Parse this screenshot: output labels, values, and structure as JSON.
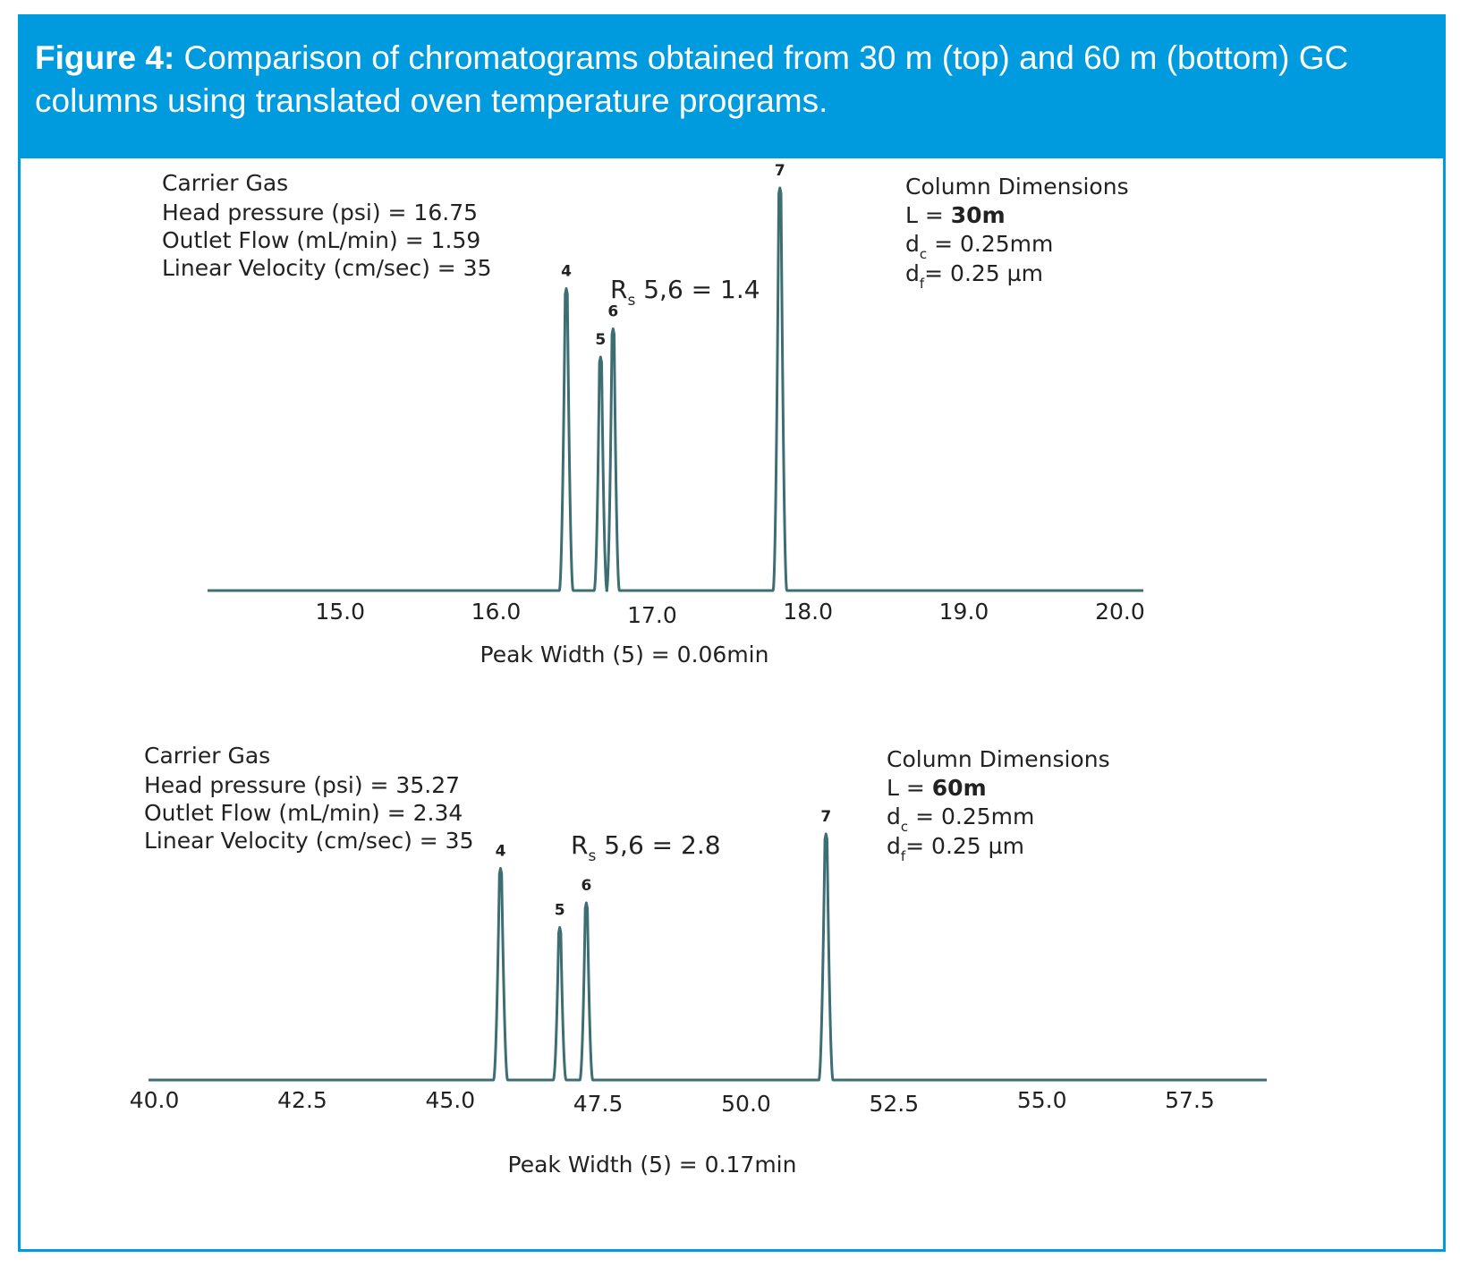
{
  "header": {
    "figure_label": "Figure 4:",
    "caption": "Comparison of chromatograms obtained from 30 m (top) and 60 m (bottom) GC columns using translated oven temperature programs.",
    "background": "#009bdf"
  },
  "colors": {
    "trace": "#3d6e73",
    "frame": "#009bdf"
  },
  "chart_data": [
    {
      "type": "line",
      "title": "",
      "xlabel": "Peak Width (5) = 0.06min",
      "ylabel": "",
      "xticks": [
        "15.0",
        "16.0",
        "17.0",
        "18.0",
        "19.0",
        "20.0"
      ],
      "xlim": [
        14.15,
        20.15
      ],
      "ylim": [
        0,
        100
      ],
      "grid": false,
      "resolution": {
        "label": "R",
        "sub": "s",
        "value": " 5,6 = 1.4"
      },
      "carrier_gas": {
        "title": "Carrier Gas",
        "lines": [
          "Head pressure (psi) = 16.75",
          "Outlet Flow (mL/min) = 1.59",
          "Linear Velocity (cm/sec) = 35"
        ]
      },
      "column": {
        "title": "Column Dimensions",
        "length_prefix": "L = ",
        "length_value": "30m",
        "dc_main": "d",
        "dc_sub": "c",
        "dc_value": " = 0.25mm",
        "df_main": "d",
        "df_sub": "f",
        "df_value": "= 0.25 µm"
      },
      "peaks": [
        {
          "label": "4",
          "x": 16.45,
          "height": 75,
          "halfwidth": 0.033
        },
        {
          "label": "5",
          "x": 16.67,
          "height": 58,
          "halfwidth": 0.03
        },
        {
          "label": "6",
          "x": 16.75,
          "height": 65,
          "halfwidth": 0.03
        },
        {
          "label": "7",
          "x": 17.82,
          "height": 100,
          "halfwidth": 0.033
        }
      ]
    },
    {
      "type": "line",
      "title": "",
      "xlabel": "Peak Width (5) = 0.17min",
      "ylabel": "",
      "xticks": [
        "40.0",
        "42.5",
        "45.0",
        "47.5",
        "50.0",
        "52.5",
        "55.0",
        "57.5"
      ],
      "xlim": [
        39.9,
        58.8
      ],
      "ylim": [
        0,
        100
      ],
      "grid": false,
      "resolution": {
        "label": "R",
        "sub": "s",
        "value": " 5,6 = 2.8"
      },
      "carrier_gas": {
        "title": "Carrier Gas",
        "lines": [
          "Head pressure (psi) = 35.27",
          "Outlet Flow (mL/min) = 2.34",
          "Linear Velocity (cm/sec) = 35"
        ]
      },
      "column": {
        "title": "Column Dimensions",
        "length_prefix": "L = ",
        "length_value": "60m",
        "dc_main": "d",
        "dc_sub": "c",
        "dc_value": " = 0.25mm",
        "df_main": "d",
        "df_sub": "f",
        "df_value": "= 0.25 µm"
      },
      "peaks": [
        {
          "label": "4",
          "x": 45.85,
          "height": 86,
          "halfwidth": 0.09
        },
        {
          "label": "5",
          "x": 46.85,
          "height": 62,
          "halfwidth": 0.08
        },
        {
          "label": "6",
          "x": 47.3,
          "height": 72,
          "halfwidth": 0.08
        },
        {
          "label": "7",
          "x": 51.35,
          "height": 100,
          "halfwidth": 0.09
        }
      ]
    }
  ]
}
